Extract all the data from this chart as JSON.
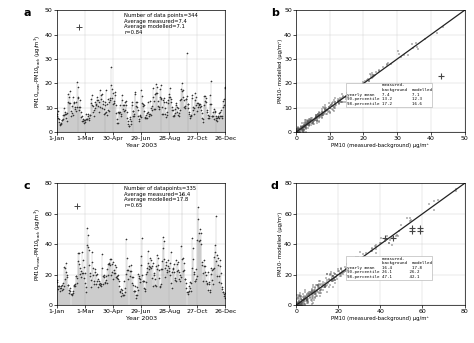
{
  "panel_a": {
    "label": "a",
    "stats_text": "Number of data points=344\nAverage measured=7.4\nAverage modelled=7.1\nr=0.84",
    "ylabel": "PM10ₘₑₐₛ-PM10ₘₑₐₛ (μg/m³)",
    "xlabel": "Year 2003",
    "xtick_labels": [
      "1-Jan",
      "1-Mar",
      "30-Apr",
      "29-Jun",
      "28-Aug",
      "27-Oct",
      "26-Dec"
    ],
    "ylim": [
      0,
      50
    ],
    "yticks": [
      0,
      10,
      20,
      30,
      40,
      50
    ]
  },
  "panel_b": {
    "label": "b",
    "ylabel": "PM10- modelled (μg/m³)",
    "xlabel": "PM10 (measured-background) μg/m³",
    "xlim": [
      0,
      50
    ],
    "ylim": [
      0,
      50
    ],
    "xticks": [
      0,
      10,
      20,
      30,
      40,
      50
    ],
    "yticks": [
      0,
      10,
      20,
      30,
      40,
      50
    ],
    "outlier_x": 43,
    "outlier_y": 23,
    "row1": [
      "yearly mean",
      "7.4",
      "7.1"
    ],
    "row2": [
      "90-percentile",
      "13.2",
      "12.3"
    ],
    "row3": [
      "98-percentile",
      "17.2",
      "16.6"
    ]
  },
  "panel_c": {
    "label": "c",
    "stats_text": "Number of datapoints=335\nAverage measured=16.4\nAverage modelled=17.8\nr=0.65",
    "ylabel": "PM10ₘₑₐₛ-PM10ₘₑₐₛ (μg/m³)",
    "xlabel": "Year 2003",
    "xtick_labels": [
      "1-Jan",
      "1-Mar",
      "30-Apr",
      "29-Jun",
      "28-Aug",
      "27-Oct",
      "26-Dec"
    ],
    "ylim": [
      0,
      80
    ],
    "yticks": [
      0,
      20,
      40,
      60,
      80
    ]
  },
  "panel_d": {
    "label": "d",
    "ylabel": "PM10- modelled (μg/m³)",
    "xlabel": "PM10 (measured-background) μg/m³",
    "xlim": [
      0,
      80
    ],
    "ylim": [
      0,
      80
    ],
    "xticks": [
      0,
      20,
      40,
      60,
      80
    ],
    "yticks": [
      0,
      20,
      40,
      60,
      80
    ],
    "outlier_pts": [
      [
        42,
        44
      ],
      [
        46,
        44
      ],
      [
        55,
        49
      ],
      [
        59,
        49
      ],
      [
        55,
        51
      ],
      [
        59,
        51
      ]
    ],
    "row1": [
      "yearly mean",
      "16.4",
      "17.8"
    ],
    "row2": [
      "90-percentile",
      "26.1",
      "26.2"
    ],
    "row3": [
      "98-percentile",
      "47.1",
      "42.1"
    ]
  }
}
